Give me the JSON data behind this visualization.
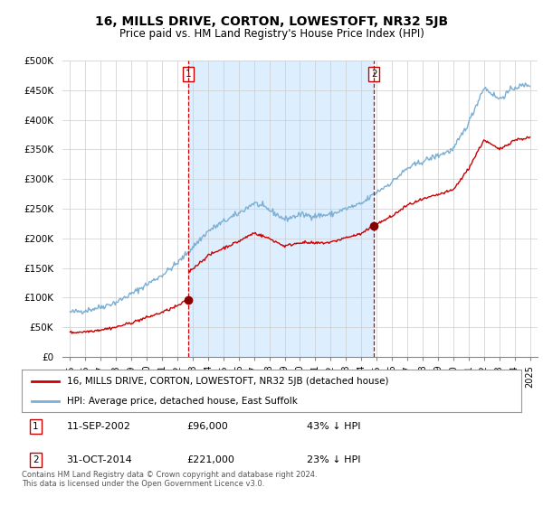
{
  "title": "16, MILLS DRIVE, CORTON, LOWESTOFT, NR32 5JB",
  "subtitle": "Price paid vs. HM Land Registry's House Price Index (HPI)",
  "legend_line1": "16, MILLS DRIVE, CORTON, LOWESTOFT, NR32 5JB (detached house)",
  "legend_line2": "HPI: Average price, detached house, East Suffolk",
  "footnote1": "Contains HM Land Registry data © Crown copyright and database right 2024.",
  "footnote2": "This data is licensed under the Open Government Licence v3.0.",
  "table_rows": [
    {
      "num": "1",
      "date": "11-SEP-2002",
      "price": "£96,000",
      "hpi": "43% ↓ HPI"
    },
    {
      "num": "2",
      "date": "31-OCT-2014",
      "price": "£221,000",
      "hpi": "23% ↓ HPI"
    }
  ],
  "sale1": {
    "year": 2002.7,
    "price": 96000
  },
  "sale2": {
    "year": 2014.83,
    "price": 221000
  },
  "hpi_color": "#7bafd4",
  "price_color": "#cc0000",
  "sale_marker_color": "#880000",
  "vline_color": "#cc0000",
  "shade_color": "#ddeeff",
  "background_color": "#ffffff",
  "grid_color": "#cccccc",
  "ylim": [
    0,
    500000
  ],
  "yticks": [
    0,
    50000,
    100000,
    150000,
    200000,
    250000,
    300000,
    350000,
    400000,
    450000,
    500000
  ],
  "xlim": [
    1994.5,
    2025.5
  ]
}
